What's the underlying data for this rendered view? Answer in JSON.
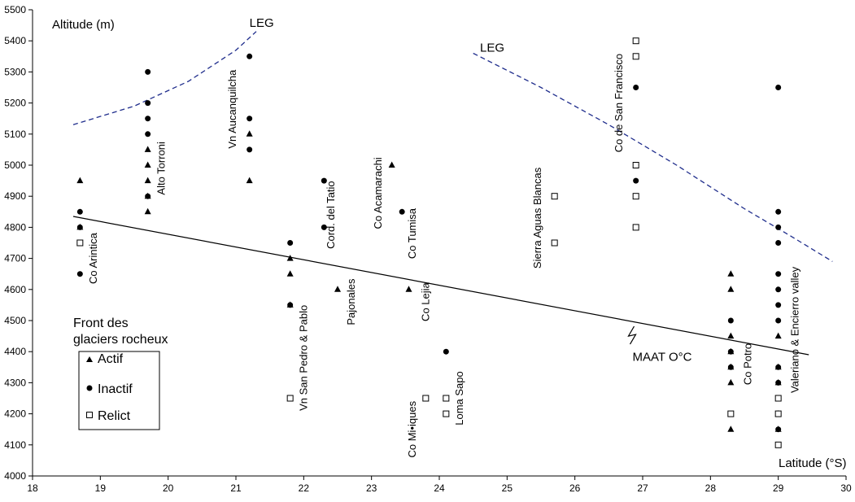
{
  "chart_data": {
    "type": "scatter",
    "xlim": [
      18,
      30
    ],
    "ylim": [
      4000,
      5500
    ],
    "x_ticks": [
      "18",
      "19",
      "20",
      "21",
      "22",
      "23",
      "24",
      "25",
      "26",
      "27",
      "28",
      "29",
      "30"
    ],
    "y_ticks": [
      "4000",
      "4100",
      "4200",
      "4300",
      "4400",
      "4500",
      "4600",
      "4700",
      "4800",
      "4900",
      "5000",
      "5100",
      "5200",
      "5300",
      "5400",
      "5500"
    ],
    "ylabel": "Altitude (m)",
    "xlabel": "Latitude (°S)",
    "grid": false,
    "legend": {
      "title_lines": [
        "Front des",
        "glaciers rocheux"
      ],
      "position": "lower-left"
    },
    "series": [
      {
        "name": "Actif",
        "marker": "triangle",
        "points": [
          [
            18.7,
            4950
          ],
          [
            18.7,
            4800
          ],
          [
            19.7,
            5050
          ],
          [
            19.7,
            5000
          ],
          [
            19.7,
            4950
          ],
          [
            19.7,
            4900
          ],
          [
            19.7,
            4850
          ],
          [
            21.2,
            5100
          ],
          [
            21.2,
            4950
          ],
          [
            21.8,
            4700
          ],
          [
            21.8,
            4650
          ],
          [
            21.8,
            4550
          ],
          [
            22.5,
            4600
          ],
          [
            23.3,
            5000
          ],
          [
            23.55,
            4600
          ],
          [
            28.3,
            4650
          ],
          [
            28.3,
            4600
          ],
          [
            28.3,
            4450
          ],
          [
            28.3,
            4400
          ],
          [
            28.3,
            4350
          ],
          [
            28.3,
            4300
          ],
          [
            28.3,
            4150
          ],
          [
            29.0,
            4450
          ],
          [
            29.0,
            4350
          ],
          [
            29.0,
            4300
          ],
          [
            29.0,
            4200
          ],
          [
            29.0,
            4150
          ]
        ]
      },
      {
        "name": "Inactif",
        "marker": "circle",
        "points": [
          [
            18.7,
            4850
          ],
          [
            18.7,
            4800
          ],
          [
            18.7,
            4650
          ],
          [
            19.7,
            5300
          ],
          [
            19.7,
            5200
          ],
          [
            19.7,
            5150
          ],
          [
            19.7,
            5100
          ],
          [
            19.7,
            4900
          ],
          [
            21.2,
            5350
          ],
          [
            21.2,
            5150
          ],
          [
            21.2,
            5050
          ],
          [
            21.8,
            4750
          ],
          [
            21.8,
            4550
          ],
          [
            22.3,
            4950
          ],
          [
            22.3,
            4800
          ],
          [
            23.45,
            4850
          ],
          [
            24.1,
            4400
          ],
          [
            26.9,
            5250
          ],
          [
            26.9,
            4950
          ],
          [
            28.3,
            4500
          ],
          [
            28.3,
            4400
          ],
          [
            28.3,
            4350
          ],
          [
            29.0,
            5250
          ],
          [
            29.0,
            4850
          ],
          [
            29.0,
            4800
          ],
          [
            29.0,
            4750
          ],
          [
            29.0,
            4650
          ],
          [
            29.0,
            4600
          ],
          [
            29.0,
            4550
          ],
          [
            29.0,
            4500
          ],
          [
            29.0,
            4350
          ],
          [
            29.0,
            4300
          ],
          [
            29.0,
            4150
          ]
        ]
      },
      {
        "name": "Relict",
        "marker": "square",
        "points": [
          [
            18.7,
            4750
          ],
          [
            21.8,
            4250
          ],
          [
            23.8,
            4250
          ],
          [
            24.1,
            4250
          ],
          [
            24.1,
            4200
          ],
          [
            25.7,
            4900
          ],
          [
            25.7,
            4750
          ],
          [
            26.9,
            5400
          ],
          [
            26.9,
            5350
          ],
          [
            26.9,
            5000
          ],
          [
            26.9,
            4900
          ],
          [
            26.9,
            4800
          ],
          [
            28.3,
            4200
          ],
          [
            29.0,
            4250
          ],
          [
            29.0,
            4200
          ],
          [
            29.0,
            4100
          ]
        ]
      }
    ],
    "lines": [
      {
        "label": "MAAT O°C",
        "style": "solid",
        "color": "#000000",
        "points": [
          [
            18.6,
            4835
          ],
          [
            29.45,
            4390
          ]
        ]
      },
      {
        "label": "LEG",
        "style": "dashed",
        "color": "#1f2d8c",
        "points": [
          [
            18.6,
            5130
          ],
          [
            19.5,
            5190
          ],
          [
            20.3,
            5270
          ],
          [
            21.0,
            5370
          ],
          [
            21.3,
            5430
          ]
        ]
      },
      {
        "label": "LEG",
        "style": "dashed",
        "color": "#1f2d8c",
        "points": [
          [
            24.5,
            5360
          ],
          [
            25.5,
            5250
          ],
          [
            26.5,
            5130
          ],
          [
            27.5,
            5000
          ],
          [
            28.5,
            4860
          ],
          [
            29.2,
            4770
          ],
          [
            29.8,
            4690
          ]
        ]
      }
    ],
    "site_labels": [
      {
        "text": "Co Arintica",
        "x": 18.95,
        "y": 4700
      },
      {
        "text": "Alto Torroni",
        "x": 19.95,
        "y": 4990
      },
      {
        "text": "Vn Aucanquilcha",
        "x": 21.0,
        "y": 5180
      },
      {
        "text": "Vn San Pedro & Pablo",
        "x": 22.05,
        "y": 4380
      },
      {
        "text": "Cord. del Tatio",
        "x": 22.45,
        "y": 4840
      },
      {
        "text": "Pajonales",
        "x": 22.75,
        "y": 4560
      },
      {
        "text": "Co Acamarachi",
        "x": 23.15,
        "y": 4910
      },
      {
        "text": "Co Tumisa",
        "x": 23.65,
        "y": 4780
      },
      {
        "text": "Co Lejia",
        "x": 23.85,
        "y": 4560
      },
      {
        "text": "Co Mi•iques",
        "x": 23.65,
        "y": 4150
      },
      {
        "text": "Loma Sapo",
        "x": 24.35,
        "y": 4250
      },
      {
        "text": "Sierra Aguas Blancas",
        "x": 25.5,
        "y": 4830
      },
      {
        "text": "Co de San Francisco",
        "x": 26.7,
        "y": 5200
      },
      {
        "text": "Co Potro",
        "x": 28.6,
        "y": 4360
      },
      {
        "text": "Valeriano & Encierro valley",
        "x": 29.3,
        "y": 4470
      }
    ],
    "curve_labels": [
      {
        "text": "LEG",
        "x": 21.2,
        "y": 5445
      },
      {
        "text": "LEG",
        "x": 24.6,
        "y": 5365
      },
      {
        "text": "MAAT O°C",
        "x": 26.85,
        "y": 4370
      }
    ]
  }
}
